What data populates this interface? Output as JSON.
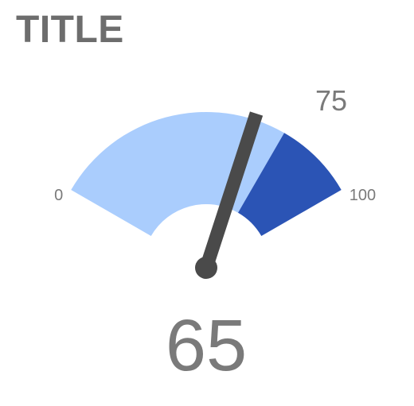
{
  "chart_data": {
    "type": "gauge",
    "title": "TITLE",
    "value": 65,
    "min": 0,
    "max": 100,
    "threshold": 75,
    "labels": {
      "min": "0",
      "max": "100",
      "threshold": "75",
      "value": "65"
    },
    "colors": {
      "low_band": "#aacdfd",
      "high_band": "#2b54b5",
      "needle": "#4a4a4a",
      "text": "#7a7a7a"
    }
  }
}
